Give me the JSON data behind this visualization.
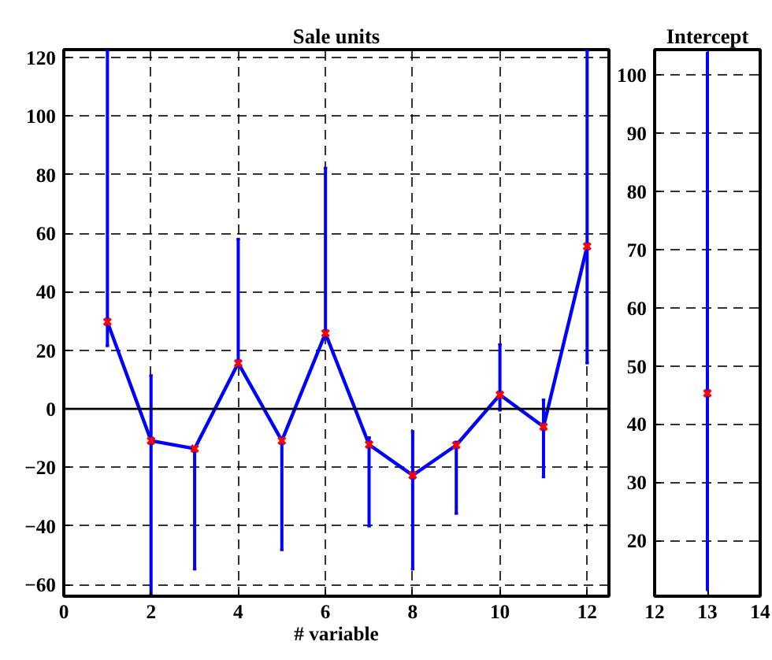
{
  "chart_data": [
    {
      "type": "line",
      "title": "Sale units",
      "xlabel": "# variable",
      "x": [
        1,
        2,
        3,
        4,
        5,
        6,
        7,
        8,
        9,
        10,
        11,
        12
      ],
      "series": [
        {
          "color": "#0000ff",
          "colors": [
            "#ff0000",
            "#ff0000",
            "#ff0000",
            "#ff0000",
            "#ff0000",
            "#ff0000",
            "#ff0000",
            "#ff0000",
            "#ff0000",
            "#ff0000",
            "#ff0000",
            "#ff0000"
          ],
          "values": [
            29.7,
            -10.9,
            -13.6,
            15.6,
            -10.9,
            25.8,
            -12.2,
            -22.7,
            -12.4,
            4.8,
            -6.1,
            55.5
          ],
          "errors": [
            [
              21.5,
              122.4
            ],
            [
              -63.5,
              11.4
            ],
            [
              -54.8,
              -13.6
            ],
            [
              15.6,
              58
            ],
            [
              -48.2,
              -10.9
            ],
            [
              25.8,
              82.3
            ],
            [
              -40.1,
              -9.8
            ],
            [
              -54.8,
              -7.7
            ],
            [
              -35.8,
              -11.3
            ],
            [
              -0.5,
              22
            ],
            [
              -23.3,
              3.1
            ],
            [
              15.6,
              122.4
            ]
          ]
        }
      ],
      "xlim": [
        0,
        12.5
      ],
      "ylim": [
        -64,
        122.7
      ],
      "xticks": [
        0,
        2,
        4,
        6,
        8,
        10,
        12
      ],
      "yticks": [
        -60,
        -40,
        -20,
        0,
        20,
        40,
        60,
        80,
        100,
        120
      ],
      "ref_lines": [
        {
          "axis": "y",
          "value": 0,
          "color": "#000000"
        }
      ],
      "grid": true,
      "marker": "cross",
      "line_style": "solid"
    },
    {
      "type": "line",
      "title": "Intercept",
      "x": [
        13
      ],
      "series": [
        {
          "color": "#0000ff",
          "colors": [
            "#ff0000"
          ],
          "values": [
            45.3
          ],
          "errors": [
            [
              11.3,
              104
            ]
          ]
        }
      ],
      "xlim": [
        12,
        14
      ],
      "ylim": [
        10.4,
        104.4
      ],
      "xticks": [
        12,
        13,
        14
      ],
      "yticks": [
        20,
        30,
        40,
        50,
        60,
        70,
        80,
        90,
        100
      ],
      "grid": true,
      "marker": "cross",
      "line_style": "solid"
    }
  ]
}
